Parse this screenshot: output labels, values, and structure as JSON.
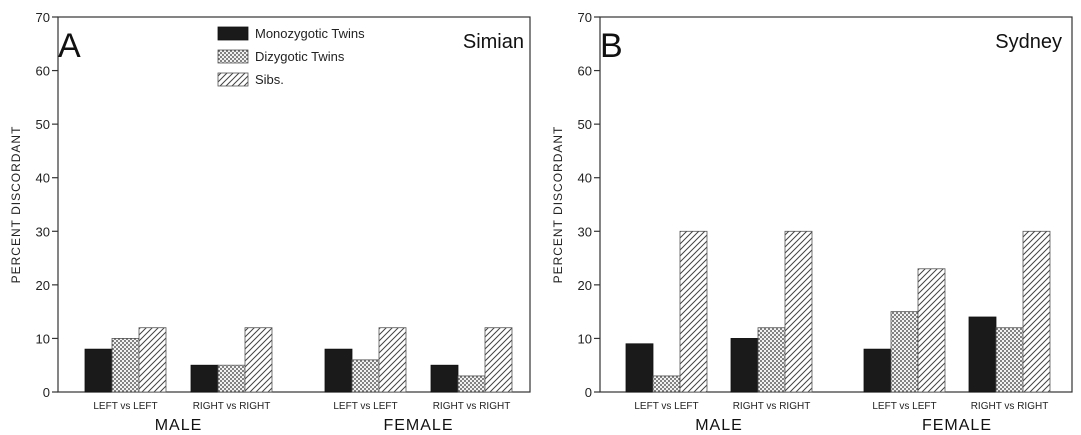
{
  "chart_data": [
    {
      "type": "bar",
      "panel_label": "A",
      "title": "Simian",
      "ylabel": "PERCENT DISCORDANT",
      "ylim": [
        0,
        70
      ],
      "yticks": [
        0,
        10,
        20,
        30,
        40,
        50,
        60,
        70
      ],
      "groups": [
        {
          "name": "MALE",
          "categories": [
            "LEFT vs LEFT",
            "RIGHT vs RIGHT"
          ]
        },
        {
          "name": "FEMALE",
          "categories": [
            "LEFT vs LEFT",
            "RIGHT vs RIGHT"
          ]
        }
      ],
      "series": [
        {
          "name": "Monozygotic Twins",
          "pattern": "solid",
          "values": [
            8,
            5,
            8,
            5
          ]
        },
        {
          "name": "Dizygotic Twins",
          "pattern": "dots",
          "values": [
            10,
            5,
            6,
            3
          ]
        },
        {
          "name": "Sibs.",
          "pattern": "hatch",
          "values": [
            12,
            12,
            12,
            12
          ]
        }
      ],
      "legend": "top"
    },
    {
      "type": "bar",
      "panel_label": "B",
      "title": "Sydney",
      "ylabel": "PERCENT DISCORDANT",
      "ylim": [
        0,
        70
      ],
      "yticks": [
        0,
        10,
        20,
        30,
        40,
        50,
        60,
        70
      ],
      "groups": [
        {
          "name": "MALE",
          "categories": [
            "LEFT vs LEFT",
            "RIGHT vs RIGHT"
          ]
        },
        {
          "name": "FEMALE",
          "categories": [
            "LEFT vs LEFT",
            "RIGHT vs RIGHT"
          ]
        }
      ],
      "series": [
        {
          "name": "Monozygotic Twins",
          "pattern": "solid",
          "values": [
            9,
            10,
            8,
            14
          ]
        },
        {
          "name": "Dizygotic Twins",
          "pattern": "dots",
          "values": [
            3,
            12,
            15,
            12
          ]
        },
        {
          "name": "Sibs.",
          "pattern": "hatch",
          "values": [
            30,
            30,
            23,
            30
          ]
        }
      ]
    }
  ]
}
